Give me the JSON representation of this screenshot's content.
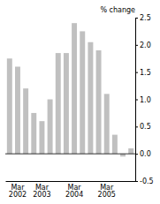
{
  "chart_data": {
    "type": "bar",
    "ylabel": "% change",
    "categories": [
      null,
      "Mar\n2002",
      null,
      null,
      "Mar\n2003",
      null,
      null,
      null,
      "Mar\n2004",
      null,
      null,
      null,
      "Mar\n2005",
      null,
      null,
      null
    ],
    "values": [
      1.75,
      1.6,
      1.2,
      0.75,
      0.6,
      1.0,
      1.85,
      1.85,
      2.4,
      2.25,
      2.05,
      1.9,
      1.1,
      0.35,
      -0.05,
      0.1
    ],
    "color": "#c0c0c0",
    "ylim": [
      -0.5,
      2.5
    ],
    "yticks": [
      -0.5,
      {
        "value": 0.0,
        "label": "0.0"
      },
      0.5,
      {
        "value": 1.0,
        "label": "1.0"
      },
      1.5,
      {
        "value": 2.0,
        "label": "2.0"
      },
      2.5
    ]
  }
}
